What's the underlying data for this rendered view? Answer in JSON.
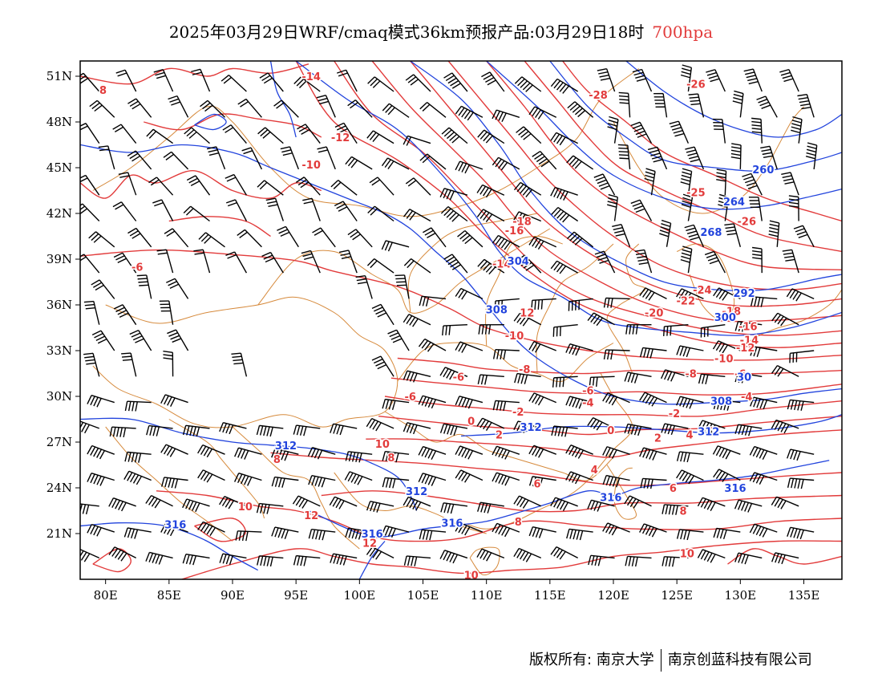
{
  "title": {
    "main": "2025年03月29日WRF/cmaq模式36km预报产品:03月29日18时",
    "level": "700hpa"
  },
  "axes": {
    "lat_ticks": [
      "51N",
      "48N",
      "45N",
      "42N",
      "39N",
      "36N",
      "33N",
      "30N",
      "27N",
      "24N",
      "21N"
    ],
    "lon_ticks": [
      "80E",
      "85E",
      "90E",
      "95E",
      "100E",
      "105E",
      "110E",
      "115E",
      "120E",
      "125E",
      "130E",
      "135E"
    ]
  },
  "chart_data": {
    "type": "map",
    "lon_range": [
      78,
      138
    ],
    "lat_range": [
      18,
      52
    ],
    "colors": {
      "temperature": "#e23b3b",
      "height": "#2244dd",
      "wind": "#000000",
      "border": "#d68a3c"
    },
    "temperature_labels": [
      {
        "text": "-14",
        "lon": 96.2,
        "lat": 51.0
      },
      {
        "text": "-12",
        "lon": 98.5,
        "lat": 47.0
      },
      {
        "text": "-10",
        "lon": 96.2,
        "lat": 45.2
      },
      {
        "text": "-6",
        "lon": 82.5,
        "lat": 38.5
      },
      {
        "text": "-28",
        "lon": 118.8,
        "lat": 49.8
      },
      {
        "text": "-26",
        "lon": 126.5,
        "lat": 50.5
      },
      {
        "text": "-26",
        "lon": 130.5,
        "lat": 41.5
      },
      {
        "text": "-25",
        "lon": 126.5,
        "lat": 43.4
      },
      {
        "text": "-18",
        "lon": 112.8,
        "lat": 41.5
      },
      {
        "text": "-16",
        "lon": 112.2,
        "lat": 40.9
      },
      {
        "text": "-14",
        "lon": 111.2,
        "lat": 38.7
      },
      {
        "text": "-24",
        "lon": 127.0,
        "lat": 37.0
      },
      {
        "text": "-22",
        "lon": 125.7,
        "lat": 36.3
      },
      {
        "text": "-20",
        "lon": 123.2,
        "lat": 35.5
      },
      {
        "text": "-18",
        "lon": 129.3,
        "lat": 35.6
      },
      {
        "text": "-16",
        "lon": 130.6,
        "lat": 34.6
      },
      {
        "text": "-14",
        "lon": 130.7,
        "lat": 33.7
      },
      {
        "text": "-12",
        "lon": 130.4,
        "lat": 33.2
      },
      {
        "text": "-10",
        "lon": 128.7,
        "lat": 32.5
      },
      {
        "text": "-8",
        "lon": 126.1,
        "lat": 31.5
      },
      {
        "text": "-6",
        "lon": 130.0,
        "lat": 31.5
      },
      {
        "text": "-4",
        "lon": 130.5,
        "lat": 30.0
      },
      {
        "text": "12",
        "lon": 113.2,
        "lat": 35.5
      },
      {
        "text": "-10",
        "lon": 112.2,
        "lat": 34.0
      },
      {
        "text": "-8",
        "lon": 113.0,
        "lat": 31.8
      },
      {
        "text": "-6",
        "lon": 107.8,
        "lat": 31.3
      },
      {
        "text": "-6",
        "lon": 118.0,
        "lat": 30.4
      },
      {
        "text": "-4",
        "lon": 118.0,
        "lat": 29.6
      },
      {
        "text": "-6",
        "lon": 104.0,
        "lat": 30.0
      },
      {
        "text": "-2",
        "lon": 112.5,
        "lat": 29.0
      },
      {
        "text": "-2",
        "lon": 124.8,
        "lat": 28.9
      },
      {
        "text": "0",
        "lon": 108.8,
        "lat": 28.4
      },
      {
        "text": "0",
        "lon": 119.8,
        "lat": 27.8
      },
      {
        "text": "2",
        "lon": 111.0,
        "lat": 27.5
      },
      {
        "text": "2",
        "lon": 123.5,
        "lat": 27.3
      },
      {
        "text": "4",
        "lon": 126.0,
        "lat": 27.5
      },
      {
        "text": "4",
        "lon": 118.5,
        "lat": 25.2
      },
      {
        "text": "6",
        "lon": 114.0,
        "lat": 24.3
      },
      {
        "text": "6",
        "lon": 124.7,
        "lat": 24.0
      },
      {
        "text": "8",
        "lon": 125.5,
        "lat": 22.5
      },
      {
        "text": "8",
        "lon": 112.5,
        "lat": 21.8
      },
      {
        "text": "8",
        "lon": 93.5,
        "lat": 25.9
      },
      {
        "text": "8",
        "lon": 102.5,
        "lat": 26.0
      },
      {
        "text": "10",
        "lon": 101.8,
        "lat": 26.9
      },
      {
        "text": "10",
        "lon": 91.0,
        "lat": 22.8
      },
      {
        "text": "10",
        "lon": 125.8,
        "lat": 19.7
      },
      {
        "text": "10",
        "lon": 108.8,
        "lat": 18.3
      },
      {
        "text": "12",
        "lon": 96.2,
        "lat": 22.2
      },
      {
        "text": "12",
        "lon": 100.8,
        "lat": 20.4
      },
      {
        "text": "8",
        "lon": 79.8,
        "lat": 50.1
      }
    ],
    "height_labels": [
      {
        "text": "260",
        "lon": 131.8,
        "lat": 44.9
      },
      {
        "text": "264",
        "lon": 129.5,
        "lat": 42.8
      },
      {
        "text": "268",
        "lon": 127.7,
        "lat": 40.8
      },
      {
        "text": "292",
        "lon": 130.3,
        "lat": 36.8
      },
      {
        "text": "300",
        "lon": 128.8,
        "lat": 35.2
      },
      {
        "text": "304",
        "lon": 112.5,
        "lat": 38.9
      },
      {
        "text": "308",
        "lon": 110.8,
        "lat": 35.7
      },
      {
        "text": "308",
        "lon": 128.5,
        "lat": 29.7
      },
      {
        "text": "30",
        "lon": 130.3,
        "lat": 31.3
      },
      {
        "text": "312",
        "lon": 94.2,
        "lat": 26.8
      },
      {
        "text": "312",
        "lon": 113.5,
        "lat": 28.0
      },
      {
        "text": "312",
        "lon": 127.5,
        "lat": 27.7
      },
      {
        "text": "312",
        "lon": 104.5,
        "lat": 23.8
      },
      {
        "text": "316",
        "lon": 119.8,
        "lat": 23.4
      },
      {
        "text": "316",
        "lon": 129.6,
        "lat": 24.0
      },
      {
        "text": "316",
        "lon": 85.5,
        "lat": 21.6
      },
      {
        "text": "316",
        "lon": 101.0,
        "lat": 21.0
      },
      {
        "text": "316",
        "lon": 107.3,
        "lat": 21.7
      }
    ]
  },
  "footer": {
    "left": "版权所有: 南京大学",
    "right": "南京创蓝科技有限公司"
  }
}
